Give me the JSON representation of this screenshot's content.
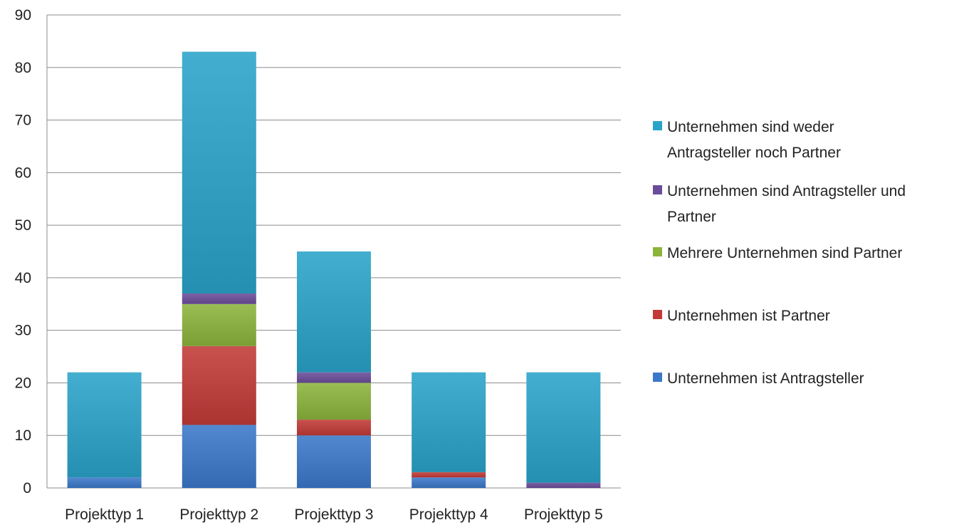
{
  "chart_data": {
    "type": "bar",
    "stacked": true,
    "categories": [
      "Projekttyp 1",
      "Projekttyp 2",
      "Projekttyp 3",
      "Projekttyp 4",
      "Projekttyp 5"
    ],
    "series": [
      {
        "name": "Unternehmen ist Antragsteller",
        "values": [
          2,
          12,
          10,
          2,
          0
        ],
        "color": "#3a78c9"
      },
      {
        "name": "Unternehmen ist Partner",
        "values": [
          0,
          15,
          3,
          1,
          0
        ],
        "color": "#c23a37"
      },
      {
        "name": "Mehrere Unternehmen sind Partner",
        "values": [
          0,
          8,
          7,
          0,
          0
        ],
        "color": "#8cb43c"
      },
      {
        "name": "Unternehmen sind Antragsteller und Partner",
        "values": [
          0,
          2,
          2,
          0,
          1
        ],
        "color": "#6b4c9a"
      },
      {
        "name": "Unternehmen sind weder Antragsteller noch Partner",
        "values": [
          20,
          46,
          23,
          19,
          21
        ],
        "color": "#2aa3c9"
      }
    ],
    "yticks": [
      "0",
      "10",
      "20",
      "30",
      "40",
      "50",
      "60",
      "70",
      "80",
      "90"
    ],
    "ylim": [
      0,
      90
    ],
    "grid": true,
    "legend_position": "right",
    "legend_entries": [
      [
        "Unternehmen sind weder",
        "Antragsteller noch Partner"
      ],
      [
        "Unternehmen sind Antragsteller und",
        "Partner"
      ],
      [
        "Mehrere Unternehmen sind Partner"
      ],
      [
        "Unternehmen ist Partner"
      ],
      [
        "Unternehmen ist Antragsteller"
      ]
    ],
    "legend_colors": [
      "#2aa3c9",
      "#6b4c9a",
      "#8cb43c",
      "#c23a37",
      "#3a78c9"
    ]
  }
}
